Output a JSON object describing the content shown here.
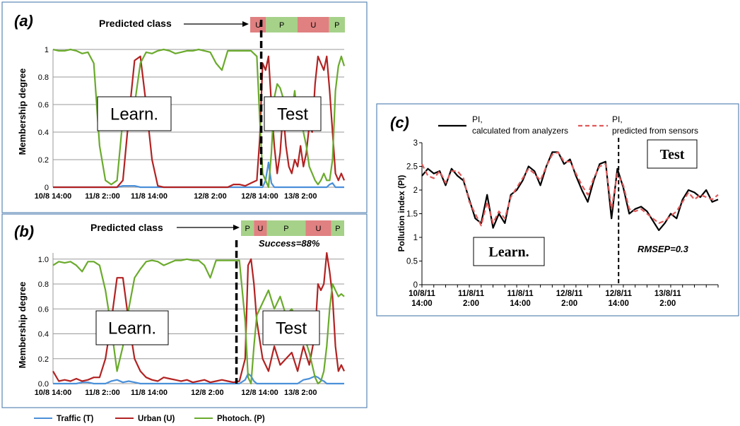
{
  "legend": {
    "items": [
      {
        "key": "T",
        "label": "Traffic (T)",
        "color": "#4a90d9"
      },
      {
        "key": "U",
        "label": "Urban (U)",
        "color": "#b22222"
      },
      {
        "key": "P",
        "label": "Photoch. (P)",
        "color": "#6aaa2c"
      }
    ]
  },
  "colors": {
    "u_block": "#e08080",
    "p_block": "#a6d189",
    "frame": "#5b87b5"
  },
  "chart_data": [
    {
      "type": "line",
      "panel_label": "(a)",
      "ylabel": "Membership degree",
      "ylim": [
        0,
        1
      ],
      "yticks": [
        "0",
        "0.2",
        "0.4",
        "0.6",
        "0.8",
        "1"
      ],
      "ytick_values": [
        0,
        0.2,
        0.4,
        0.6,
        0.8,
        1
      ],
      "xlim": [
        0,
        100
      ],
      "xticks": [
        {
          "x": 0,
          "label": "10/8 14:00"
        },
        {
          "x": 17,
          "label": "11/8 2::00"
        },
        {
          "x": 33,
          "label": "11/8 14:00"
        },
        {
          "x": 54,
          "label": "12/8 2:00"
        },
        {
          "x": 71,
          "label": "12/8 14:00"
        },
        {
          "x": 85,
          "label": "13/8 2:00"
        }
      ],
      "split_x": 71.5,
      "learn_label": "Learn.",
      "test_label": "Test",
      "predicted_class_label": "Predicted class",
      "predicted_blocks": [
        {
          "label": "U",
          "cls": "U",
          "weight": 1
        },
        {
          "label": "P",
          "cls": "P",
          "weight": 2
        },
        {
          "label": "U",
          "cls": "U",
          "weight": 2
        },
        {
          "label": "P",
          "cls": "P",
          "weight": 1
        }
      ],
      "x": [
        0,
        2,
        4,
        6,
        8,
        10,
        12,
        14,
        16,
        18,
        20,
        22,
        24,
        26,
        28,
        30,
        32,
        34,
        36,
        38,
        40,
        42,
        44,
        46,
        48,
        50,
        52,
        54,
        56,
        58,
        60,
        62,
        64,
        66,
        68,
        70,
        71,
        72,
        73,
        74,
        75,
        76,
        77,
        78,
        79,
        80,
        81,
        82,
        83,
        84,
        85,
        86,
        87,
        88,
        89,
        90,
        91,
        92,
        93,
        94,
        95,
        96,
        97,
        98,
        99,
        100
      ],
      "series": [
        {
          "name": "Traffic (T)",
          "key": "T",
          "values": [
            0,
            0,
            0,
            0,
            0,
            0,
            0,
            0,
            0,
            0,
            0,
            0,
            0.01,
            0.01,
            0.01,
            0,
            0,
            0,
            0,
            0,
            0,
            0,
            0,
            0,
            0,
            0,
            0,
            0,
            0,
            0,
            0,
            0,
            0,
            0,
            0,
            0,
            0,
            0,
            0.05,
            0.18,
            0.03,
            0,
            0,
            0,
            0,
            0,
            0,
            0,
            0,
            0,
            0,
            0,
            0,
            0,
            0,
            0,
            0,
            0,
            0,
            0,
            0.02,
            0.03,
            0,
            0,
            0,
            0
          ]
        },
        {
          "name": "Urban (U)",
          "key": "U",
          "values": [
            0,
            0,
            0,
            0,
            0,
            0,
            0,
            0,
            0,
            0,
            0,
            0,
            0.05,
            0.5,
            0.92,
            0.95,
            0.6,
            0.2,
            0.01,
            0,
            0,
            0,
            0,
            0,
            0,
            0,
            0,
            0,
            0,
            0,
            0,
            0.02,
            0.02,
            0.01,
            0.03,
            0.05,
            0.35,
            0.9,
            0.85,
            0.95,
            0.6,
            0.3,
            0.1,
            0.25,
            0.55,
            0.3,
            0.15,
            0.1,
            0.2,
            0.15,
            0.3,
            0.15,
            0.25,
            0.45,
            0.4,
            0.75,
            0.95,
            0.9,
            0.85,
            0.95,
            0.7,
            0.4,
            0.1,
            0.05,
            0.1,
            0.05
          ]
        },
        {
          "name": "Photoch. (P)",
          "key": "P",
          "values": [
            1,
            0.99,
            0.99,
            1,
            0.99,
            0.97,
            0.98,
            0.9,
            0.3,
            0.05,
            0.02,
            0.05,
            0.5,
            0.6,
            0.6,
            0.9,
            0.98,
            0.97,
            0.99,
            1,
            0.99,
            0.97,
            0.98,
            0.99,
            0.99,
            1,
            0.99,
            0.98,
            0.9,
            0.85,
            0.99,
            0.99,
            0.99,
            0.99,
            0.99,
            0.95,
            0.5,
            0.1,
            0.05,
            0.0,
            0.25,
            0.65,
            0.75,
            0.72,
            0.65,
            0.45,
            0.6,
            0.55,
            0.7,
            0.5,
            0.6,
            0.4,
            0.3,
            0.15,
            0.1,
            0.05,
            0.02,
            0.05,
            0.1,
            0.05,
            0.05,
            0.2,
            0.7,
            0.88,
            0.95,
            0.88
          ]
        }
      ]
    },
    {
      "type": "line",
      "panel_label": "(b)",
      "ylabel": "Membership degree",
      "ylim": [
        0,
        1.05
      ],
      "yticks": [
        "0.0",
        "0.2",
        "0.4",
        "0.6",
        "0.8",
        "1.0"
      ],
      "ytick_values": [
        0,
        0.2,
        0.4,
        0.6,
        0.8,
        1
      ],
      "xlim": [
        0,
        100
      ],
      "xticks": [
        {
          "x": 0,
          "label": "10/8 14:00"
        },
        {
          "x": 17,
          "label": "11/8 2::00"
        },
        {
          "x": 33,
          "label": "11/8 14:00"
        },
        {
          "x": 53,
          "label": "12/8 2:00"
        },
        {
          "x": 71,
          "label": "12/8 14:00"
        },
        {
          "x": 85,
          "label": "13/8 2:00"
        }
      ],
      "split_x": 63,
      "learn_label": "Learn.",
      "test_label": "Test",
      "predicted_class_label": "Predicted class",
      "success_label": "Success=88%",
      "predicted_blocks": [
        {
          "label": "P",
          "cls": "P",
          "weight": 1
        },
        {
          "label": "U",
          "cls": "U",
          "weight": 1
        },
        {
          "label": "P",
          "cls": "P",
          "weight": 3
        },
        {
          "label": "U",
          "cls": "U",
          "weight": 2
        },
        {
          "label": "P",
          "cls": "P",
          "weight": 1
        }
      ],
      "x": [
        0,
        2,
        4,
        6,
        8,
        10,
        12,
        14,
        16,
        18,
        20,
        22,
        24,
        26,
        28,
        30,
        32,
        34,
        36,
        38,
        40,
        42,
        44,
        46,
        48,
        50,
        52,
        54,
        56,
        58,
        60,
        62,
        64,
        66,
        67,
        68,
        69,
        70,
        72,
        74,
        76,
        78,
        80,
        82,
        84,
        86,
        88,
        90,
        91,
        92,
        93,
        94,
        95,
        96,
        97,
        98,
        99,
        100
      ],
      "series": [
        {
          "name": "Traffic (T)",
          "key": "T",
          "values": [
            0,
            0,
            0,
            0,
            0,
            0.01,
            0.01,
            0,
            0,
            0,
            0.02,
            0.03,
            0.01,
            0.02,
            0.01,
            0,
            0,
            0,
            0,
            0,
            0,
            0,
            0,
            0,
            0,
            0,
            0,
            0,
            0,
            0,
            0,
            0,
            0,
            0.03,
            0.08,
            0.06,
            0.02,
            0,
            0,
            0,
            0,
            0,
            0,
            0,
            0,
            0.03,
            0.04,
            0.06,
            0.05,
            0.03,
            0.02,
            0,
            0,
            0,
            0,
            0,
            0,
            0
          ]
        },
        {
          "name": "Urban (U)",
          "key": "U",
          "values": [
            0.1,
            0.02,
            0.03,
            0.02,
            0.04,
            0.02,
            0.03,
            0.05,
            0.05,
            0.2,
            0.5,
            0.85,
            0.85,
            0.5,
            0.2,
            0.1,
            0.05,
            0.03,
            0.02,
            0.05,
            0.04,
            0.03,
            0.02,
            0.03,
            0.01,
            0.02,
            0.03,
            0.01,
            0.02,
            0.03,
            0.02,
            0.01,
            0.02,
            0.2,
            0.95,
            1.0,
            0.8,
            0.5,
            0.2,
            0.1,
            0.3,
            0.15,
            0.2,
            0.25,
            0.1,
            0.3,
            0.15,
            0.4,
            0.8,
            0.75,
            0.8,
            1.05,
            0.9,
            0.7,
            0.3,
            0.1,
            0.15,
            0.1
          ]
        },
        {
          "name": "Photoch. (P)",
          "key": "P",
          "values": [
            0.95,
            0.98,
            0.97,
            0.98,
            0.95,
            0.9,
            0.98,
            0.98,
            0.95,
            0.75,
            0.45,
            0.1,
            0.3,
            0.6,
            0.85,
            0.92,
            0.98,
            0.99,
            0.98,
            0.95,
            0.97,
            0.99,
            0.99,
            1.0,
            0.99,
            0.99,
            0.95,
            0.85,
            0.99,
            0.99,
            0.99,
            0.99,
            0.99,
            0.5,
            0.05,
            0.0,
            0.3,
            0.55,
            0.65,
            0.75,
            0.6,
            0.7,
            0.55,
            0.6,
            0.5,
            0.4,
            0.25,
            0.05,
            0.0,
            0.02,
            0.1,
            0.3,
            0.6,
            0.8,
            0.75,
            0.7,
            0.72,
            0.7
          ]
        }
      ]
    },
    {
      "type": "line",
      "panel_label": "(c)",
      "ylabel": "Pollution index (PI)",
      "ylim": [
        0,
        3
      ],
      "yticks": [
        "0",
        "0.5",
        "1",
        "1.5",
        "2",
        "2.5",
        "3"
      ],
      "ytick_values": [
        0,
        0.5,
        1,
        1.5,
        2,
        2.5,
        3
      ],
      "xlim": [
        0,
        100
      ],
      "xticks": [
        {
          "x": 0,
          "line1": "10/8/11",
          "line2": "14:00"
        },
        {
          "x": 16.6,
          "line1": "11/8/11",
          "line2": "2:00"
        },
        {
          "x": 33.2,
          "line1": "11/8/11",
          "line2": "14:00"
        },
        {
          "x": 49.8,
          "line1": "12/8/11",
          "line2": "2:00"
        },
        {
          "x": 66.4,
          "line1": "12/8/11",
          "line2": "14:00"
        },
        {
          "x": 83,
          "line1": "13/8/11",
          "line2": "2:00"
        }
      ],
      "split_x": 66.4,
      "learn_label": "Learn.",
      "test_label": "Test",
      "rmsep_label": "RMSEP=0.3",
      "x": [
        0,
        2,
        4,
        6,
        8,
        10,
        12,
        14,
        16,
        18,
        20,
        22,
        24,
        26,
        28,
        30,
        32,
        34,
        36,
        38,
        40,
        42,
        44,
        46,
        48,
        50,
        52,
        54,
        56,
        58,
        60,
        62,
        64,
        66,
        68,
        70,
        72,
        74,
        76,
        78,
        80,
        82,
        84,
        86,
        88,
        90,
        92,
        94,
        96,
        98,
        100
      ],
      "series": [
        {
          "name": "PI, calculated from analyzers",
          "key": "calc",
          "style": "solid",
          "color": "#000000",
          "values": [
            2.3,
            2.45,
            2.35,
            2.4,
            2.1,
            2.45,
            2.3,
            2.2,
            1.8,
            1.4,
            1.3,
            1.9,
            1.2,
            1.5,
            1.3,
            1.9,
            2.0,
            2.2,
            2.5,
            2.4,
            2.1,
            2.5,
            2.8,
            2.8,
            2.55,
            2.65,
            2.3,
            2.0,
            1.75,
            2.2,
            2.55,
            2.6,
            1.4,
            2.45,
            2.05,
            1.5,
            1.6,
            1.65,
            1.55,
            1.35,
            1.15,
            1.3,
            1.5,
            1.4,
            1.8,
            2.0,
            1.95,
            1.85,
            2.0,
            1.75,
            1.8
          ]
        },
        {
          "name": "PI, predicted from sensors",
          "key": "pred",
          "style": "dashed",
          "color": "#e05a5a",
          "values": [
            2.55,
            2.3,
            2.25,
            2.4,
            2.15,
            2.4,
            2.4,
            2.25,
            1.75,
            1.5,
            1.25,
            1.75,
            1.3,
            1.55,
            1.4,
            1.85,
            2.05,
            2.25,
            2.45,
            2.35,
            2.2,
            2.5,
            2.75,
            2.8,
            2.6,
            2.6,
            2.35,
            2.1,
            1.9,
            2.25,
            2.5,
            2.55,
            1.6,
            2.35,
            2.1,
            1.6,
            1.55,
            1.6,
            1.5,
            1.4,
            1.3,
            1.35,
            1.45,
            1.55,
            1.75,
            1.95,
            1.8,
            1.9,
            1.85,
            1.8,
            1.9
          ]
        }
      ]
    }
  ]
}
